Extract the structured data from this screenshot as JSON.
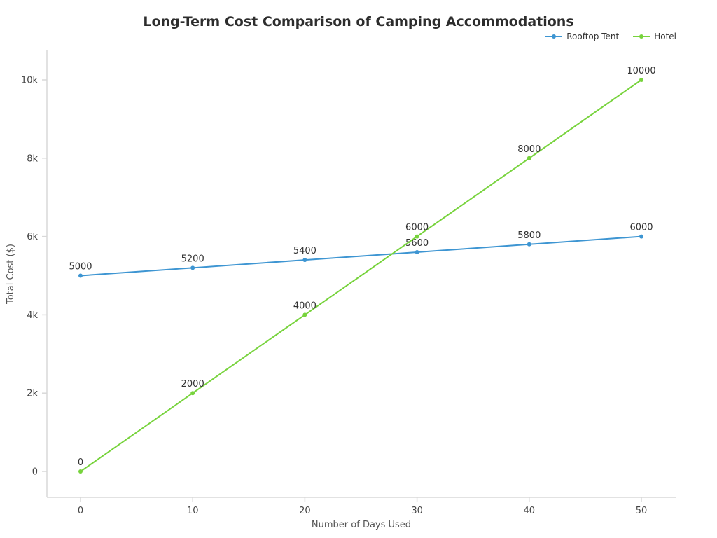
{
  "chart_data": {
    "type": "line",
    "title": "Long-Term Cost Comparison of Camping Accommodations",
    "xlabel": "Number of Days Used",
    "ylabel": "Total Cost ($)",
    "x": [
      0,
      10,
      20,
      30,
      40,
      50
    ],
    "series": [
      {
        "name": "Rooftop Tent",
        "color": "#3d95d2",
        "values": [
          5000,
          5200,
          5400,
          5600,
          5800,
          6000
        ]
      },
      {
        "name": "Hotel",
        "color": "#77d33c",
        "values": [
          0,
          2000,
          4000,
          6000,
          8000,
          10000
        ]
      }
    ],
    "x_ticks": [
      "0",
      "10",
      "20",
      "30",
      "40",
      "50"
    ],
    "y_ticks": [
      {
        "v": 0,
        "label": "0"
      },
      {
        "v": 2000,
        "label": "2k"
      },
      {
        "v": 4000,
        "label": "4k"
      },
      {
        "v": 6000,
        "label": "6k"
      },
      {
        "v": 8000,
        "label": "8k"
      },
      {
        "v": 10000,
        "label": "10k"
      }
    ],
    "xlim": [
      0,
      50
    ],
    "ylim": [
      0,
      10000
    ],
    "legend_position": "top-right",
    "grid": false,
    "data_labels": true
  }
}
